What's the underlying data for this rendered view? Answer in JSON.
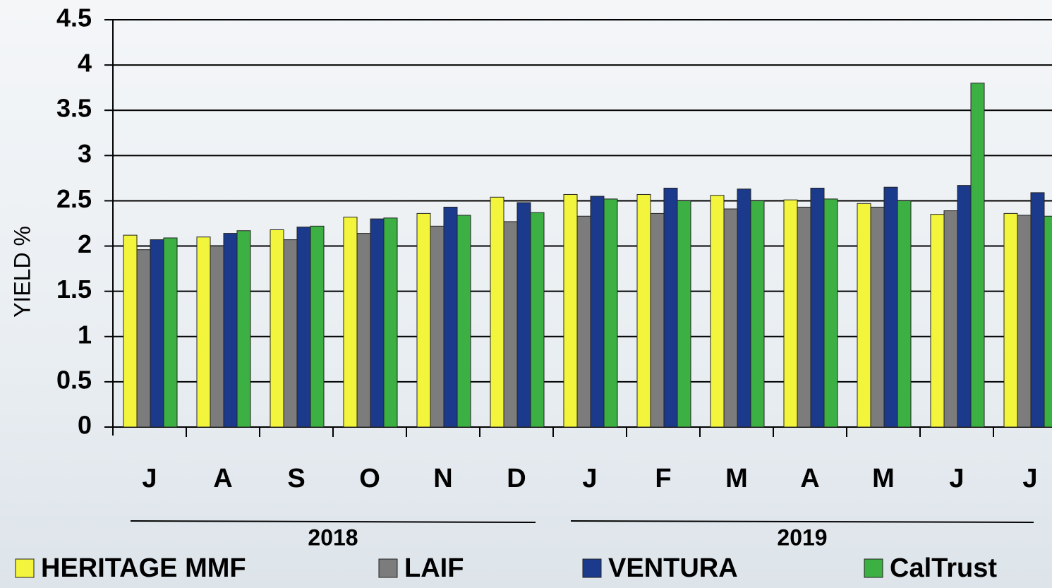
{
  "chart_data": {
    "type": "bar",
    "y_label": "YIELD %",
    "categories": [
      "J",
      "A",
      "S",
      "O",
      "N",
      "D",
      "J",
      "F",
      "M",
      "A",
      "M",
      "J",
      "J"
    ],
    "groups": [
      {
        "label": "2018",
        "size": 6
      },
      {
        "label": "2019",
        "size": 7
      }
    ],
    "series": [
      {
        "name": "HERITAGE MMF",
        "color": "#f3f53c",
        "values": [
          2.12,
          2.1,
          2.18,
          2.32,
          2.36,
          2.54,
          2.57,
          2.57,
          2.56,
          2.51,
          2.47,
          2.35,
          2.36
        ]
      },
      {
        "name": "LAIF",
        "color": "#7c7c7c",
        "values": [
          1.96,
          2.0,
          2.07,
          2.14,
          2.22,
          2.27,
          2.33,
          2.36,
          2.41,
          2.43,
          2.43,
          2.39,
          2.34
        ]
      },
      {
        "name": "VENTURA",
        "color": "#1b3a8c",
        "values": [
          2.07,
          2.14,
          2.21,
          2.3,
          2.43,
          2.48,
          2.55,
          2.64,
          2.63,
          2.64,
          2.65,
          2.67,
          2.59
        ]
      },
      {
        "name": "CalTrust",
        "color": "#3cb043",
        "values": [
          2.09,
          2.17,
          2.22,
          2.31,
          2.34,
          2.37,
          2.52,
          2.5,
          2.5,
          2.52,
          2.5,
          3.8,
          2.33
        ]
      }
    ],
    "ylim": [
      0,
      4.5
    ],
    "yticks": [
      0,
      0.5,
      1,
      1.5,
      2,
      2.5,
      3,
      3.5,
      4,
      4.5
    ],
    "grid": true
  }
}
